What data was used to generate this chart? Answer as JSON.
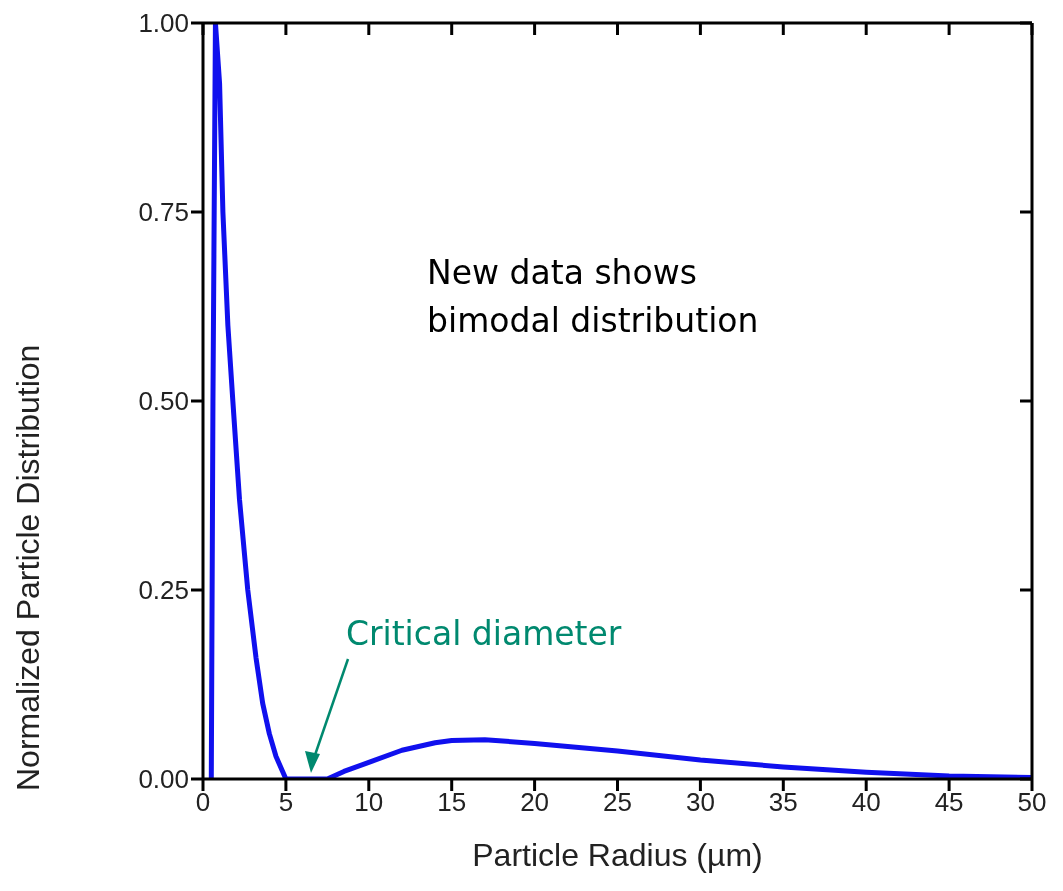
{
  "chart_data": {
    "type": "line",
    "xlabel": "Particle Radius (µm)",
    "ylabel": "Normalized Particle Distribution",
    "x": [
      0.5,
      0.6,
      0.75,
      1.0,
      1.2,
      1.5,
      1.8,
      2.2,
      2.7,
      3.2,
      3.6,
      4.0,
      4.4,
      5.0,
      6.0,
      7.5,
      8.5,
      10,
      12,
      14,
      15,
      17,
      20,
      25,
      30,
      35,
      40,
      45,
      50
    ],
    "series": [
      {
        "color": "#1010ee",
        "values": [
          0,
          0.5,
          1.0,
          0.92,
          0.75,
          0.6,
          0.5,
          0.37,
          0.25,
          0.16,
          0.1,
          0.06,
          0.03,
          0,
          0,
          0,
          0.01,
          0.022,
          0.038,
          0.048,
          0.051,
          0.052,
          0.047,
          0.037,
          0.025,
          0.016,
          0.009,
          0.004,
          0.002
        ]
      }
    ],
    "xlim": [
      0,
      50
    ],
    "xticks": [
      0,
      5,
      10,
      15,
      20,
      25,
      30,
      35,
      40,
      45,
      50
    ],
    "ylim": [
      0,
      1
    ],
    "yticks": [
      {
        "value": 0,
        "label": "0.00"
      },
      {
        "value": 0.25,
        "label": "0.25"
      },
      {
        "value": 0.5,
        "label": "0.50"
      },
      {
        "value": 0.75,
        "label": "0.75"
      },
      {
        "value": 1,
        "label": "1.00"
      }
    ],
    "grid": false,
    "legend": false,
    "marker": "none",
    "line_style": "solid",
    "annotations": [
      "New data shows\nbimodal distribution",
      "Critical diameter"
    ]
  }
}
